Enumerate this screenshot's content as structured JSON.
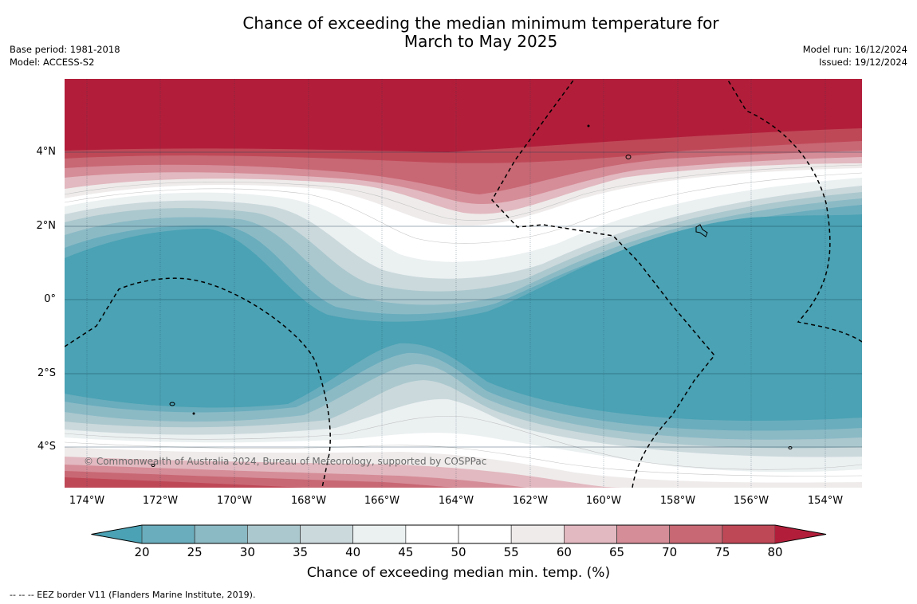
{
  "title_line1": "Chance of exceeding the median minimum temperature for",
  "title_line2": "March to May 2025",
  "meta_left": {
    "base_period": "Base period: 1981-2018",
    "model": "Model: ACCESS-S2"
  },
  "meta_right": {
    "model_run": "Model run: 16/12/2024",
    "issued": "Issued: 19/12/2024"
  },
  "copyright": "© Commonwealth of Australia 2024, Bureau of Meteorology, supported by COSPPac",
  "lat_labels": [
    "4°N",
    "2°N",
    "0°",
    "2°S",
    "4°S"
  ],
  "lon_labels": [
    "174°W",
    "172°W",
    "170°W",
    "168°W",
    "166°W",
    "164°W",
    "162°W",
    "160°W",
    "158°W",
    "156°W",
    "154°W"
  ],
  "colorbar": {
    "ticks": [
      "20",
      "25",
      "30",
      "35",
      "40",
      "45",
      "50",
      "55",
      "60",
      "65",
      "70",
      "75",
      "80"
    ],
    "label": "Chance of exceeding median min. temp. (%)",
    "colors": [
      "#4aa2b4",
      "#6aadbd",
      "#8bbac5",
      "#abc8ce",
      "#cbd9dc",
      "#ebf0f1",
      "#ffffff",
      "#ffffff",
      "#efebeb",
      "#e2b9c0",
      "#d58d98",
      "#c86874",
      "#bf4857",
      "#b21e3a"
    ]
  },
  "legend_note": "--  --  -- EEZ border V11 (Flanders Marine Institute, 2019)."
}
